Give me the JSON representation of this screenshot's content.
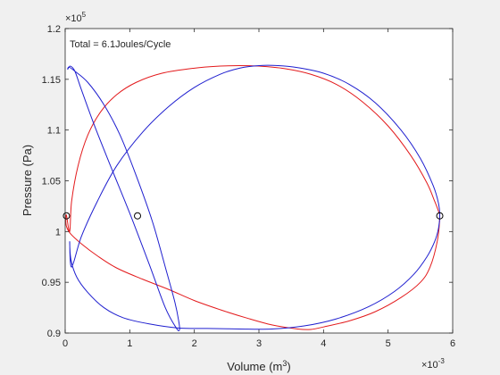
{
  "figure": {
    "background": "#f0f0f0",
    "axes_background": "#ffffff"
  },
  "chart_data": {
    "type": "line",
    "title": "",
    "annotation": "Total = 6.1Joules/Cycle",
    "xlabel_text": "Volume (m",
    "xlabel_sup": "3",
    "xlabel_close": ")",
    "ylabel": "Pressure (Pa)",
    "x_multiplier": {
      "base": "×10",
      "exp": "-3"
    },
    "y_multiplier": {
      "base": "×10",
      "exp": "5"
    },
    "xlim": [
      0,
      6
    ],
    "ylim": [
      0.9,
      1.2
    ],
    "x_ticks": [
      0,
      1,
      2,
      3,
      4,
      5,
      6
    ],
    "x_tick_labels": [
      "0",
      "1",
      "2",
      "3",
      "4",
      "5",
      "6"
    ],
    "y_ticks": [
      0.9,
      0.95,
      1.0,
      1.05,
      1.1,
      1.15,
      1.2
    ],
    "y_tick_labels": [
      "0.9",
      "0.95",
      "1",
      "1.05",
      "1.1",
      "1.15",
      "1.2"
    ],
    "grid": false,
    "legend": "none",
    "series": [
      {
        "color": "#e31a1c",
        "style": "line",
        "x": [
          0.07,
          0.1,
          0.2,
          0.35,
          0.55,
          0.8,
          1.1,
          1.5,
          2.0,
          2.4,
          2.7,
          3.0,
          3.4,
          3.8,
          4.2,
          4.6,
          5.0,
          5.35,
          5.6,
          5.72,
          5.78,
          5.8,
          5.76,
          5.65,
          5.5,
          5.2,
          4.8,
          4.4,
          4.0,
          3.8,
          3.6,
          3.2,
          2.8,
          2.4,
          2.0,
          1.6,
          1.2,
          0.8,
          0.5,
          0.25,
          0.08,
          0.02,
          0.01,
          0.02,
          0.07
        ],
        "y": [
          1.0,
          1.03,
          1.065,
          1.095,
          1.118,
          1.135,
          1.147,
          1.156,
          1.161,
          1.163,
          1.1635,
          1.163,
          1.1605,
          1.155,
          1.145,
          1.128,
          1.104,
          1.075,
          1.048,
          1.03,
          1.02,
          1.014,
          0.99,
          0.965,
          0.95,
          0.935,
          0.921,
          0.912,
          0.906,
          0.9035,
          0.904,
          0.908,
          0.915,
          0.923,
          0.932,
          0.943,
          0.953,
          0.964,
          0.976,
          0.988,
          0.998,
          1.005,
          1.012,
          1.016,
          1.0
        ]
      },
      {
        "color": "#1f1fcf",
        "style": "line",
        "x": [
          0.07,
          0.1,
          0.25,
          0.5,
          0.8,
          1.2,
          1.6,
          2.0,
          2.4,
          2.7,
          3.0,
          3.3,
          3.6,
          4.0,
          4.4,
          4.8,
          5.2,
          5.5,
          5.7,
          5.78,
          5.8,
          5.78,
          5.72,
          5.6,
          5.4,
          5.1,
          4.7,
          4.2,
          3.7,
          3.2,
          2.7,
          2.2,
          1.75,
          1.3,
          0.9,
          0.6,
          0.35,
          0.18,
          0.09,
          0.07
        ],
        "y": [
          0.99,
          0.965,
          0.995,
          1.03,
          1.065,
          1.098,
          1.123,
          1.142,
          1.155,
          1.161,
          1.1635,
          1.1635,
          1.1615,
          1.156,
          1.145,
          1.127,
          1.1,
          1.072,
          1.045,
          1.028,
          1.016,
          1.003,
          0.99,
          0.975,
          0.958,
          0.941,
          0.926,
          0.914,
          0.907,
          0.904,
          0.904,
          0.9045,
          0.905,
          0.909,
          0.915,
          0.925,
          0.94,
          0.955,
          0.972,
          0.99
        ]
      },
      {
        "color": "#1f1fcf",
        "style": "line",
        "x": [
          0.04,
          0.08,
          0.15,
          0.25,
          0.45,
          0.7,
          1.0,
          1.3,
          1.55,
          1.72,
          1.77,
          1.76,
          1.7,
          1.55,
          1.35,
          1.1,
          0.85,
          0.6,
          0.35,
          0.15,
          0.06,
          0.04
        ],
        "y": [
          1.16,
          1.163,
          1.158,
          1.14,
          1.105,
          1.065,
          1.018,
          0.968,
          0.925,
          0.905,
          0.903,
          0.911,
          0.93,
          0.965,
          1.01,
          1.055,
          1.095,
          1.125,
          1.147,
          1.158,
          1.162,
          1.16
        ]
      }
    ],
    "markers": [
      {
        "x": 0.02,
        "y": 1.0155
      },
      {
        "x": 1.12,
        "y": 1.0155
      },
      {
        "x": 5.8,
        "y": 1.0155
      }
    ]
  }
}
